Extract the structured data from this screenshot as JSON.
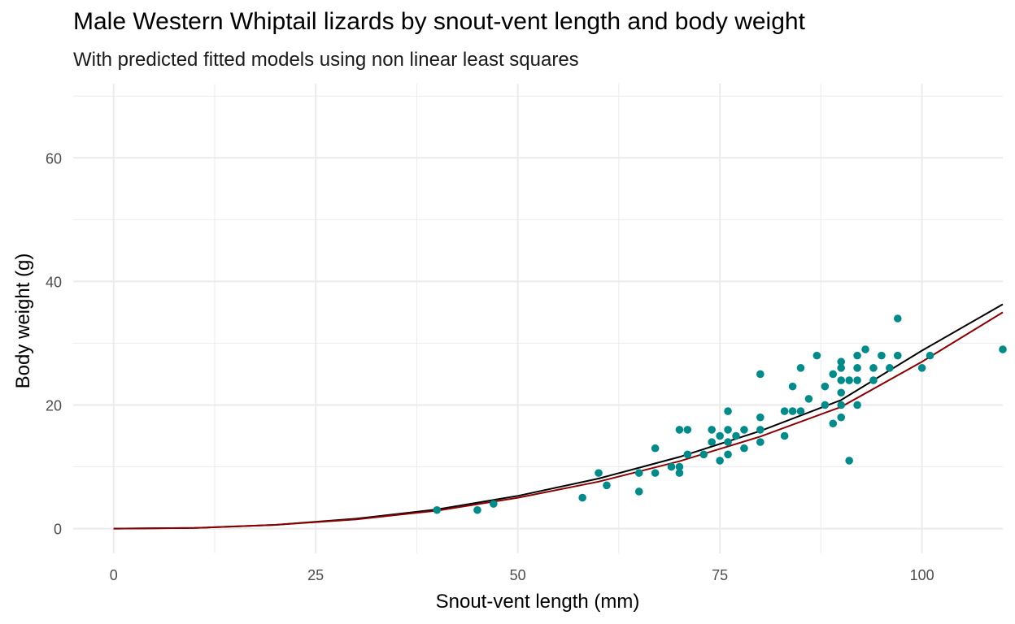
{
  "chart_data": {
    "type": "scatter",
    "title": "Male Western Whiptail lizards by snout-vent length and body weight",
    "subtitle": "With predicted fitted models using non linear least squares",
    "xlabel": "Snout-vent length (mm)",
    "ylabel": "Body weight (g)",
    "xlim": [
      -5,
      110
    ],
    "ylim": [
      -4,
      72
    ],
    "x_ticks": [
      0,
      25,
      50,
      75,
      100
    ],
    "y_ticks": [
      0,
      20,
      40,
      60
    ],
    "x_minor": [
      12.5,
      37.5,
      62.5,
      87.5
    ],
    "y_minor": [
      10,
      30,
      50,
      70
    ],
    "grid": true,
    "legend": "none",
    "colors": {
      "points": "#008B8B",
      "model_a": "#000000",
      "model_b": "#8B0000",
      "grid": "#EBEBEB",
      "tick_text": "#4D4D4D"
    },
    "series": [
      {
        "kind": "points",
        "x": [
          40,
          45,
          47,
          58,
          60,
          61,
          65,
          65,
          67,
          67,
          69,
          70,
          70,
          70,
          71,
          71,
          73,
          74,
          74,
          75,
          75,
          76,
          76,
          76,
          76,
          77,
          78,
          78,
          80,
          80,
          80,
          80,
          83,
          83,
          84,
          84,
          85,
          85,
          86,
          87,
          88,
          88,
          89,
          89,
          90,
          90,
          90,
          90,
          90,
          90,
          91,
          91,
          92,
          92,
          92,
          92,
          93,
          94,
          94,
          95,
          96,
          97,
          97,
          100,
          101,
          110
        ],
        "y": [
          3,
          3,
          4,
          5,
          9,
          7,
          6,
          9,
          13,
          9,
          10,
          16,
          10,
          9,
          16,
          12,
          12,
          16,
          14,
          15,
          11,
          19,
          16,
          14,
          12,
          15,
          16,
          13,
          25,
          18,
          16,
          14,
          19,
          15,
          23,
          19,
          26,
          19,
          21,
          28,
          23,
          20,
          25,
          17,
          27,
          26,
          24,
          22,
          20,
          18,
          24,
          11,
          28,
          26,
          24,
          20,
          29,
          26,
          24,
          28,
          26,
          34,
          28,
          26,
          28,
          29
        ]
      },
      {
        "kind": "line",
        "x": [
          0,
          10,
          20,
          30,
          40,
          50,
          60,
          70,
          80,
          90,
          100,
          110
        ],
        "y": [
          0,
          0.1,
          0.6,
          1.6,
          3.1,
          5.3,
          8.1,
          11.6,
          15.8,
          20.8,
          28.8,
          36.3
        ]
      },
      {
        "kind": "line",
        "x": [
          0,
          10,
          20,
          30,
          40,
          50,
          60,
          70,
          80,
          90,
          100,
          110
        ],
        "y": [
          0,
          0.1,
          0.6,
          1.5,
          2.9,
          5.0,
          7.6,
          10.9,
          14.9,
          19.7,
          27.0,
          35.0
        ]
      }
    ]
  }
}
